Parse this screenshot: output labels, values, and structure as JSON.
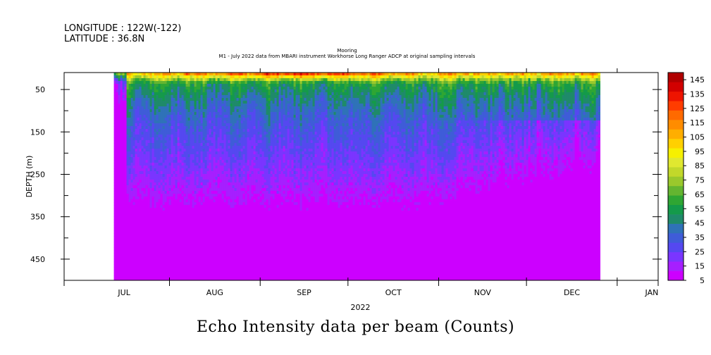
{
  "header": {
    "longitude": "LONGITUDE : 122W(-122)",
    "latitude": "LATITUDE : 36.8N"
  },
  "caption": "Echo Intensity data per beam (Counts)",
  "chart_data": {
    "type": "heatmap",
    "title": "Mooring",
    "subtitle": "M1 - July 2022 data from MBARI instrument Workhorse Long Ranger ADCP at original sampling intervals",
    "xlabel": "2022",
    "ylabel": "DEPTH (m)",
    "x_ticks": [
      "JUL",
      "AUG",
      "SEP",
      "OCT",
      "NOV",
      "DEC",
      "JAN"
    ],
    "x_range": [
      "2022-06-26",
      "2023-01-15"
    ],
    "data_x_range": [
      "2022-07-13",
      "2022-12-26"
    ],
    "y_ticks": [
      50,
      150,
      250,
      350,
      450
    ],
    "y_range": [
      10,
      500
    ],
    "y_inverted": true,
    "colorbar": {
      "levels": [
        5,
        15,
        25,
        35,
        45,
        55,
        65,
        75,
        85,
        95,
        105,
        115,
        125,
        135,
        145
      ],
      "colors": [
        "#cc00ff",
        "#a61fff",
        "#7a35ff",
        "#5548f0",
        "#3f5cd8",
        "#2f72b8",
        "#1f8a6a",
        "#149a4a",
        "#2fa633",
        "#64b530",
        "#9ac82c",
        "#c2d82a",
        "#e0e830",
        "#f6f000",
        "#ffd000",
        "#ffae00",
        "#ff8c00",
        "#ff6a00",
        "#ff3c00",
        "#ee1400",
        "#d20000",
        "#b00000"
      ]
    },
    "depth_profile": [
      {
        "depth": 15,
        "value": 95
      },
      {
        "depth": 25,
        "value": 70
      },
      {
        "depth": 40,
        "value": 55
      },
      {
        "depth": 70,
        "value": 45
      },
      {
        "depth": 120,
        "value": 35
      },
      {
        "depth": 200,
        "value": 25
      },
      {
        "depth": 280,
        "value": 15
      },
      {
        "depth": 350,
        "value": 5
      },
      {
        "depth": 500,
        "value": 5
      }
    ]
  }
}
